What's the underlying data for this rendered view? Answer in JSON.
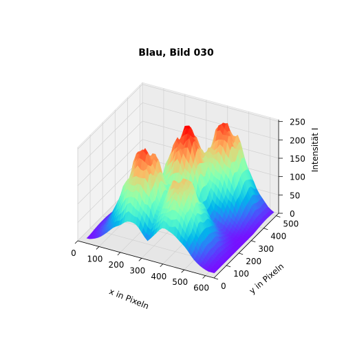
{
  "chart_data": {
    "type": "surface3d",
    "title": "Blau, Bild 030",
    "xlabel": "x in Pixeln",
    "ylabel": "y in Pixeln",
    "zlabel": "Intensität I",
    "xlim": [
      0,
      640
    ],
    "ylim": [
      0,
      520
    ],
    "zlim": [
      0,
      255
    ],
    "x_ticks": [
      "0",
      "100",
      "200",
      "300",
      "400",
      "500",
      "600"
    ],
    "y_ticks": [
      "0",
      "100",
      "200",
      "300",
      "400",
      "500"
    ],
    "z_ticks": [
      "0",
      "50",
      "100",
      "150",
      "200",
      "250"
    ],
    "colormap": "rainbow",
    "grid": true,
    "peaks": [
      {
        "x": 230,
        "y": 150,
        "intensity": 230
      },
      {
        "x": 330,
        "y": 310,
        "intensity": 250
      },
      {
        "x": 410,
        "y": 130,
        "intensity": 185
      },
      {
        "x": 430,
        "y": 440,
        "intensity": 230
      }
    ],
    "baseline_intensity": 5
  }
}
